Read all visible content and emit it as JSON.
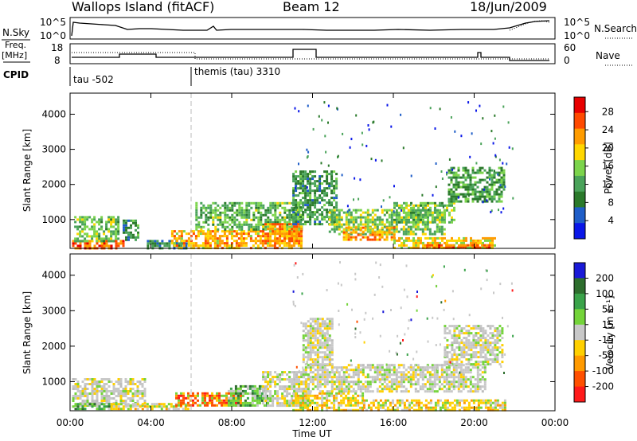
{
  "header": {
    "site": "Wallops Island (fitACF)",
    "beam": "Beam 12",
    "date": "18/Jun/2009"
  },
  "strip1": {
    "left_label": "N.Sky",
    "right_label": "N.Search",
    "left_ticks": [
      "10^5",
      "10^0"
    ],
    "right_ticks": [
      "10^5",
      "10^0"
    ]
  },
  "strip2": {
    "left_label_1": "Freq.",
    "left_label_2": "[MHz]",
    "right_label": "Nave",
    "left_ticks": [
      "18",
      "8"
    ],
    "right_ticks": [
      "60",
      "0"
    ]
  },
  "cpid": {
    "label": "CPID",
    "segments": [
      {
        "name": "tau -502",
        "start_hour": 0
      },
      {
        "name": "themis (tau) 3310",
        "start_hour": 6
      }
    ]
  },
  "chart_data": [
    {
      "type": "heatmap",
      "panel": "power",
      "ylabel": "Slant Range [km]",
      "yticks": [
        1000,
        2000,
        3000,
        4000
      ],
      "ylim": [
        180,
        4600
      ],
      "xlim": [
        0,
        24
      ],
      "colorbar_label": "Power [dB]",
      "colorbar_ticks": [
        "4",
        "8",
        "12",
        "16",
        "20",
        "24",
        "28"
      ],
      "colorbar_range": [
        0,
        31
      ],
      "colors": [
        "#0a17e8",
        "#1f5ec8",
        "#2b7a2b",
        "#4aa35a",
        "#7cd44c",
        "#ffd700",
        "#ff9c00",
        "#ff4a00",
        "#e80000"
      ],
      "regions": [
        {
          "t0": 0.1,
          "t1": 2.6,
          "r0": 200,
          "r1": 420,
          "level": 26
        },
        {
          "t0": 0.2,
          "t1": 2.4,
          "r0": 420,
          "r1": 1100,
          "level": 14
        },
        {
          "t0": 2.6,
          "t1": 3.4,
          "r0": 400,
          "r1": 1000,
          "level": 9
        },
        {
          "t0": 3.8,
          "t1": 5.9,
          "r0": 200,
          "r1": 420,
          "level": 8
        },
        {
          "t0": 5.0,
          "t1": 11.5,
          "r0": 200,
          "r1": 700,
          "level": 22
        },
        {
          "t0": 6.2,
          "t1": 11.5,
          "r0": 700,
          "r1": 1500,
          "level": 13
        },
        {
          "t0": 9.5,
          "t1": 11.4,
          "r0": 300,
          "r1": 900,
          "level": 24
        },
        {
          "t0": 11.0,
          "t1": 13.2,
          "r0": 900,
          "r1": 2400,
          "level": 10
        },
        {
          "t0": 12.8,
          "t1": 18.5,
          "r0": 600,
          "r1": 1300,
          "level": 15
        },
        {
          "t0": 13.5,
          "t1": 16.0,
          "r0": 400,
          "r1": 800,
          "level": 23
        },
        {
          "t0": 16.0,
          "t1": 21.0,
          "r0": 200,
          "r1": 500,
          "level": 20
        },
        {
          "t0": 16.0,
          "t1": 19.0,
          "r0": 900,
          "r1": 1500,
          "level": 14
        },
        {
          "t0": 18.7,
          "t1": 21.5,
          "r0": 1500,
          "r1": 2500,
          "level": 11
        },
        {
          "t0": 17.5,
          "t1": 21.0,
          "r0": 200,
          "r1": 300,
          "level": 25
        }
      ]
    },
    {
      "type": "heatmap",
      "panel": "velocity",
      "xlabel": "Time UT",
      "ylabel": "Slant Range [km]",
      "xticks": [
        "00:00",
        "04:00",
        "08:00",
        "12:00",
        "16:00",
        "20:00",
        "00:00"
      ],
      "yticks": [
        1000,
        2000,
        3000,
        4000
      ],
      "ylim": [
        180,
        4600
      ],
      "xlim": [
        0,
        24
      ],
      "colorbar_label": "Velocity [m s⁻¹]",
      "colorbar_ticks": [
        "200",
        "100",
        "50",
        "15",
        "-15",
        "-50",
        "-100",
        "-200"
      ],
      "colors": [
        "#1a1ad8",
        "#2e6e2e",
        "#3aa34a",
        "#74d43a",
        "#c8c8c8",
        "#ffd000",
        "#ff9a00",
        "#ff5000",
        "#ff1a1a"
      ],
      "regions": [
        {
          "t0": 0.1,
          "t1": 3.7,
          "r0": 300,
          "r1": 1100,
          "class": "gray"
        },
        {
          "t0": 0.1,
          "t1": 2.0,
          "r0": 200,
          "r1": 400,
          "class": "green"
        },
        {
          "t0": 2.0,
          "t1": 5.8,
          "r0": 200,
          "r1": 400,
          "class": "yellow"
        },
        {
          "t0": 5.2,
          "t1": 8.5,
          "r0": 300,
          "r1": 700,
          "class": "red"
        },
        {
          "t0": 7.8,
          "t1": 9.8,
          "r0": 300,
          "r1": 900,
          "class": "green"
        },
        {
          "t0": 9.5,
          "t1": 11.8,
          "r0": 300,
          "r1": 1300,
          "class": "gray"
        },
        {
          "t0": 11.0,
          "t1": 14.5,
          "r0": 200,
          "r1": 700,
          "class": "yellow"
        },
        {
          "t0": 11.5,
          "t1": 20.5,
          "r0": 700,
          "r1": 1500,
          "class": "gray"
        },
        {
          "t0": 11.5,
          "t1": 13.0,
          "r0": 1500,
          "r1": 2800,
          "class": "gray"
        },
        {
          "t0": 18.5,
          "t1": 21.4,
          "r0": 1500,
          "r1": 2600,
          "class": "gray"
        },
        {
          "t0": 14.5,
          "t1": 21.5,
          "r0": 200,
          "r1": 500,
          "class": "yellow"
        }
      ]
    }
  ]
}
